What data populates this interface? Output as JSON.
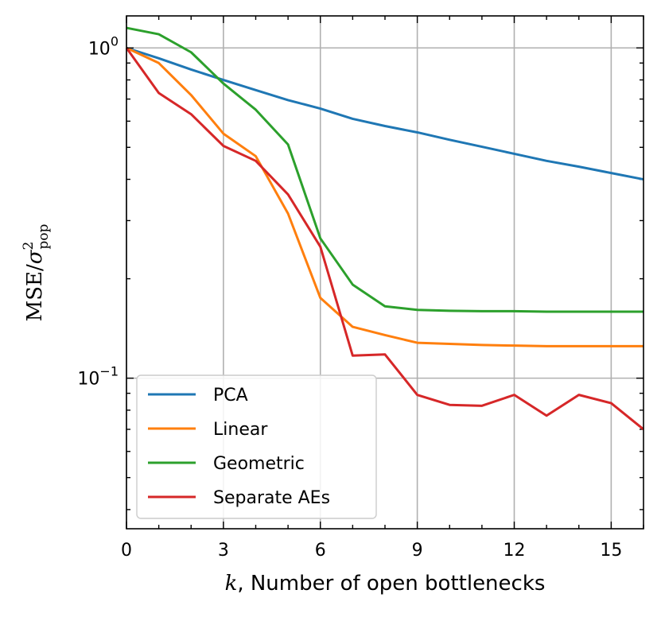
{
  "chart_data": {
    "type": "line",
    "xlabel_math": "k",
    "xlabel": ", Number of open bottlenecks",
    "ylabel_main": "MSE/",
    "ylabel_sigma": "σ",
    "ylabel_sup": "2",
    "ylabel_sub": "pop",
    "xlim": [
      0,
      16
    ],
    "ylim": [
      0.035,
      1.25
    ],
    "y_scale": "log",
    "grid": true,
    "legend_position": "lower-left",
    "x_ticks": [
      0,
      3,
      6,
      9,
      12,
      15
    ],
    "x_tick_labels": [
      "0",
      "3",
      "6",
      "9",
      "12",
      "15"
    ],
    "y_major_ticks": [
      {
        "value": 1.0,
        "base": "10",
        "exp": "0"
      },
      {
        "value": 0.1,
        "base": "10",
        "exp": "−1"
      }
    ],
    "x": [
      0,
      1,
      2,
      3,
      4,
      5,
      6,
      7,
      8,
      9,
      10,
      11,
      12,
      13,
      14,
      15,
      16
    ],
    "series": [
      {
        "name": "PCA",
        "color": "#1f77b4",
        "values": [
          1.0,
          0.93,
          0.86,
          0.8,
          0.745,
          0.695,
          0.655,
          0.61,
          0.58,
          0.555,
          0.527,
          0.502,
          0.478,
          0.455,
          0.437,
          0.418,
          0.4
        ]
      },
      {
        "name": "Linear",
        "color": "#ff7f0e",
        "values": [
          1.0,
          0.9,
          0.72,
          0.55,
          0.47,
          0.315,
          0.175,
          0.143,
          0.135,
          0.128,
          0.127,
          0.126,
          0.1255,
          0.125,
          0.125,
          0.125,
          0.125
        ]
      },
      {
        "name": "Geometric",
        "color": "#2ca02c",
        "values": [
          1.15,
          1.1,
          0.97,
          0.78,
          0.65,
          0.51,
          0.265,
          0.192,
          0.165,
          0.161,
          0.16,
          0.1595,
          0.1595,
          0.159,
          0.159,
          0.159,
          0.159
        ]
      },
      {
        "name": "Separate AEs",
        "color": "#d62728",
        "values": [
          1.0,
          0.73,
          0.63,
          0.505,
          0.455,
          0.36,
          0.25,
          0.117,
          0.118,
          0.089,
          0.083,
          0.0825,
          0.089,
          0.077,
          0.089,
          0.084,
          0.07
        ]
      }
    ]
  }
}
